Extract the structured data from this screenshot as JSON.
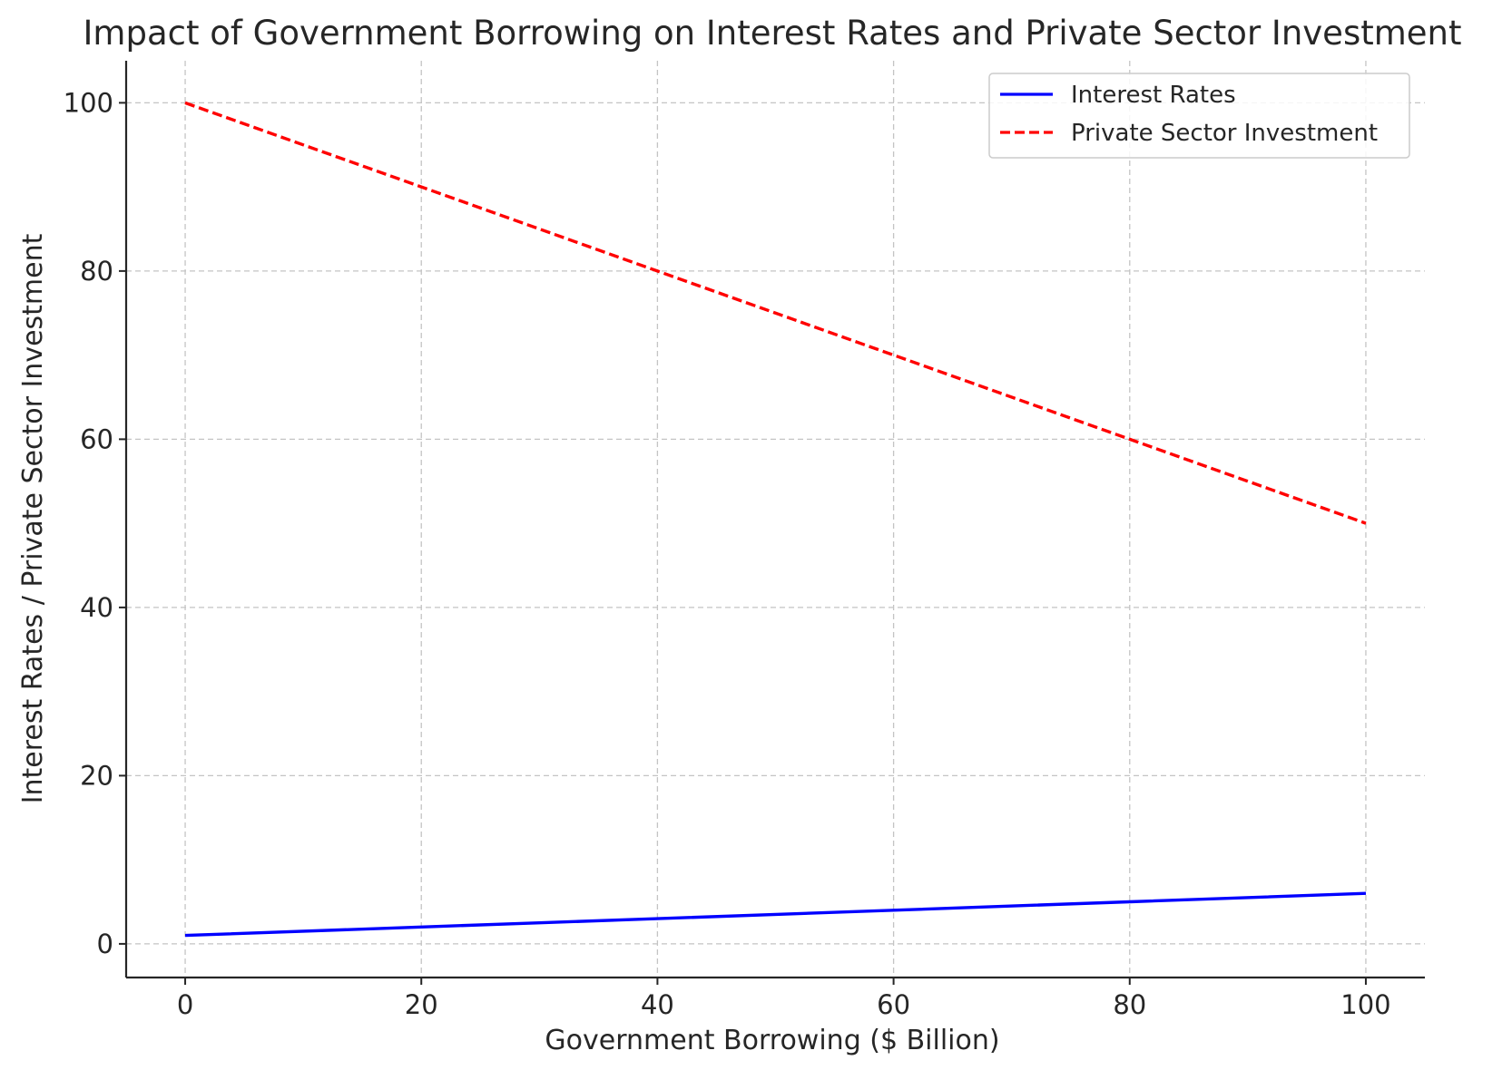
{
  "chart_data": {
    "type": "line",
    "title": "Impact of Government Borrowing on Interest Rates and Private Sector Investment",
    "xlabel": "Government Borrowing ($ Billion)",
    "ylabel": "Interest Rates / Private Sector Investment",
    "xlim": [
      -5,
      105
    ],
    "ylim": [
      -4,
      105
    ],
    "xticks": [
      0,
      20,
      40,
      60,
      80,
      100
    ],
    "yticks": [
      0,
      20,
      40,
      60,
      80,
      100
    ],
    "grid": true,
    "legend_position": "top-right",
    "series": [
      {
        "name": "Interest Rates",
        "color": "#0000ff",
        "style": "solid",
        "x": [
          0,
          20,
          40,
          60,
          80,
          100
        ],
        "y": [
          1,
          2,
          3,
          4,
          5,
          6
        ]
      },
      {
        "name": "Private Sector Investment",
        "color": "#ff0000",
        "style": "dashed",
        "x": [
          0,
          20,
          40,
          60,
          80,
          100
        ],
        "y": [
          100,
          90,
          80,
          70,
          60,
          50
        ]
      }
    ]
  }
}
